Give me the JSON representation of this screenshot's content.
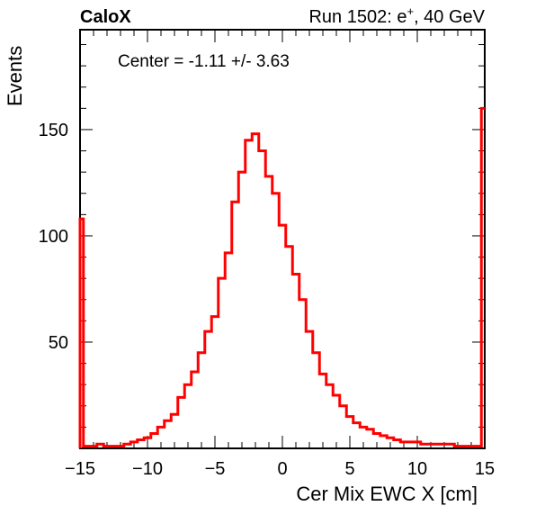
{
  "header": {
    "left": "CaloX",
    "right_prefix": "Run 1502: e",
    "right_sup": "+",
    "right_suffix": ", 40 GeV"
  },
  "stats_box": {
    "text": "Center = -1.11 +/- 3.63"
  },
  "chart_data": {
    "type": "line",
    "title": "",
    "xlabel": "Cer Mix EWC X [cm]",
    "ylabel": "Events",
    "xlim": [
      -15,
      15
    ],
    "ylim": [
      0,
      197
    ],
    "x_ticks": [
      -15,
      -10,
      -5,
      0,
      5,
      10,
      15
    ],
    "x_tick_labels": [
      "−15",
      "−10",
      "−5",
      "0",
      "5",
      "10",
      "15"
    ],
    "y_ticks": [
      50,
      100,
      150
    ],
    "y_tick_labels": [
      "50",
      "100",
      "150"
    ],
    "grid": false,
    "legend": "none",
    "series": [
      {
        "color": "#ff0000",
        "style": "step histogram",
        "x": [
          -15.0,
          -14.5,
          -14.0,
          -13.5,
          -13.0,
          -12.5,
          -12.0,
          -11.5,
          -11.0,
          -10.5,
          -10.0,
          -9.5,
          -9.0,
          -8.5,
          -8.0,
          -7.5,
          -7.0,
          -6.5,
          -6.0,
          -5.5,
          -5.0,
          -4.5,
          -4.0,
          -3.5,
          -3.0,
          -2.5,
          -2.0,
          -1.5,
          -1.0,
          -0.5,
          0.0,
          0.5,
          1.0,
          1.5,
          2.0,
          2.5,
          3.0,
          3.5,
          4.0,
          4.5,
          5.0,
          5.5,
          6.0,
          6.5,
          7.0,
          7.5,
          8.0,
          8.5,
          9.0,
          9.5,
          10.0,
          10.5,
          11.0,
          11.5,
          12.0,
          12.5,
          13.0,
          13.5,
          14.0,
          14.5,
          15.0
        ],
        "y": [
          108,
          1,
          1,
          2,
          1,
          1,
          1,
          2,
          3,
          4,
          5,
          7,
          10,
          13,
          16,
          24,
          30,
          36,
          45,
          55,
          62,
          80,
          92,
          116,
          130,
          145,
          148,
          140,
          128,
          120,
          105,
          95,
          82,
          70,
          55,
          45,
          35,
          30,
          25,
          20,
          15,
          12,
          10,
          9,
          7,
          6,
          5,
          4,
          3,
          3,
          3,
          2,
          2,
          2,
          2,
          2,
          1,
          1,
          1,
          1,
          160
        ]
      }
    ]
  }
}
